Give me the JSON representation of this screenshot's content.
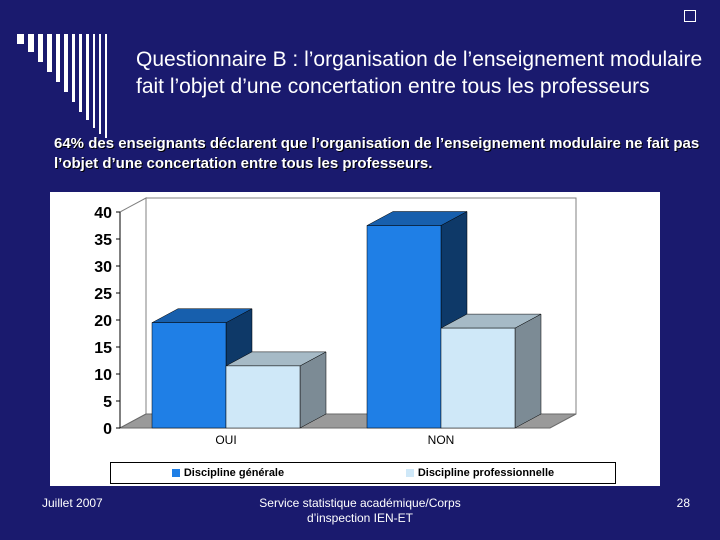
{
  "slide": {
    "title": "Questionnaire B : l’organisation de l’enseignement modulaire fait l’objet d’une concertation entre tous les professeurs",
    "subtitle": "64% des enseignants déclarent que l’organisation de l’enseignement modulaire ne fait pas l’objet d’une concertation entre tous les professeurs.",
    "footer_left": "Juillet 2007",
    "footer_center": "Service statistique académique/Corps d’inspection IEN-ET",
    "footer_right": "28"
  },
  "colors": {
    "background": "#1a1a6e",
    "series_1": "#1f7fe6",
    "series_2": "#cfe8f8"
  },
  "chart_data": {
    "type": "bar",
    "categories": [
      "OUI",
      "NON"
    ],
    "series": [
      {
        "name": "Discipline générale",
        "values": [
          19.5,
          37.5
        ]
      },
      {
        "name": "Discipline professionnelle",
        "values": [
          11.5,
          18.5
        ]
      }
    ],
    "yticks": [
      0,
      5,
      10,
      15,
      20,
      25,
      30,
      35,
      40
    ],
    "ylim": [
      0,
      40
    ],
    "legend_position": "bottom",
    "grid": false,
    "style": "3d"
  }
}
